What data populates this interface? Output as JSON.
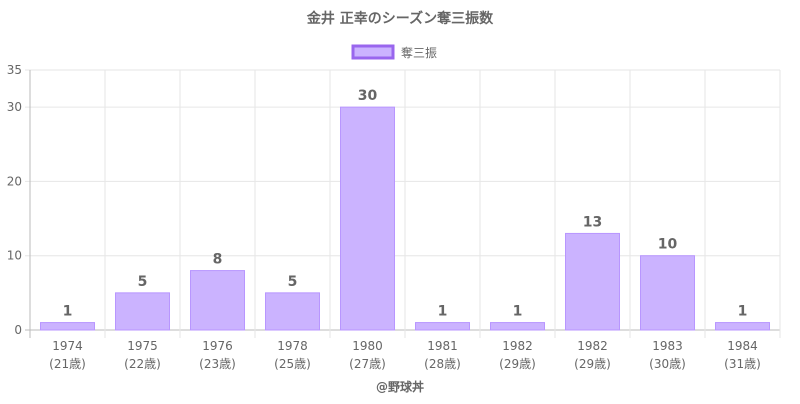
{
  "chart_data": {
    "type": "bar",
    "title": "金井 正幸のシーズン奪三振数",
    "legend": {
      "label": "奪三振",
      "position": "top"
    },
    "categories": [
      {
        "year": "1974",
        "age": "(21歳)"
      },
      {
        "year": "1975",
        "age": "(22歳)"
      },
      {
        "year": "1976",
        "age": "(23歳)"
      },
      {
        "year": "1978",
        "age": "(25歳)"
      },
      {
        "year": "1980",
        "age": "(27歳)"
      },
      {
        "year": "1981",
        "age": "(28歳)"
      },
      {
        "year": "1982",
        "age": "(29歳)"
      },
      {
        "year": "1982",
        "age": "(29歳)"
      },
      {
        "year": "1983",
        "age": "(30歳)"
      },
      {
        "year": "1984",
        "age": "(31歳)"
      }
    ],
    "values": [
      1,
      5,
      8,
      5,
      30,
      1,
      1,
      13,
      10,
      1
    ],
    "ylim": [
      0,
      35
    ],
    "yticks": [
      0,
      10,
      20,
      30,
      35
    ],
    "grid": true,
    "xlabel": "@野球丼",
    "colors": {
      "bar_fill": "#cbb3ff",
      "bar_stroke": "#b896ff",
      "legend_stroke": "#9966ee"
    }
  }
}
